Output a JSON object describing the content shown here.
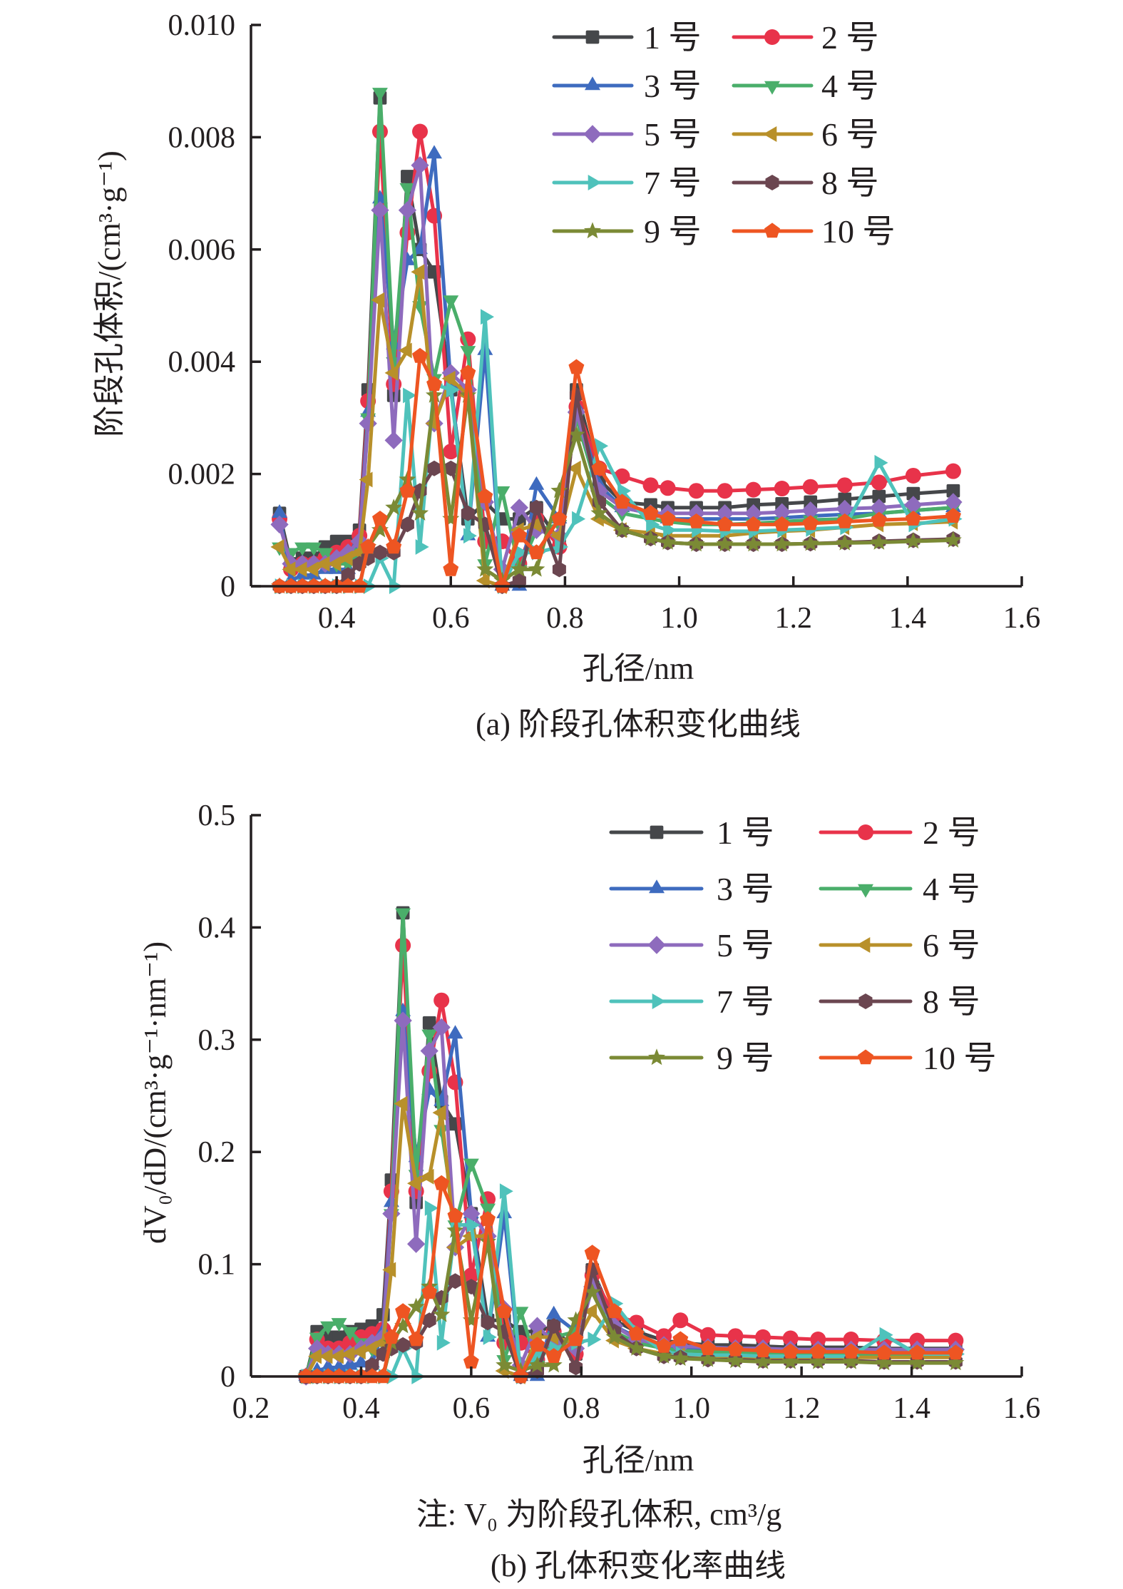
{
  "chart_data": [
    {
      "id": "a",
      "type": "line",
      "title": "",
      "caption": "(a) 阶段孔体积变化曲线",
      "xlabel": "孔径/nm",
      "ylabel": "阶段孔体积/(cm³·g⁻¹)",
      "xlim": [
        0.25,
        1.6
      ],
      "ylim": [
        0,
        0.01
      ],
      "xticks": [
        0.4,
        0.6,
        0.8,
        1.0,
        1.2,
        1.4,
        1.6
      ],
      "xtick_labels": [
        "0.4",
        "0.6",
        "0.8",
        "1.0",
        "1.2",
        "1.4",
        "1.6"
      ],
      "yticks": [
        0,
        0.002,
        0.004,
        0.006,
        0.008,
        0.01
      ],
      "ytick_labels": [
        "0",
        "0.002",
        "0.004",
        "0.006",
        "0.008",
        "0.010"
      ],
      "grid": false,
      "legend_position": "top-right",
      "x": [
        0.3,
        0.32,
        0.34,
        0.36,
        0.38,
        0.4,
        0.42,
        0.44,
        0.455,
        0.476,
        0.5,
        0.524,
        0.546,
        0.571,
        0.6,
        0.63,
        0.66,
        0.69,
        0.72,
        0.75,
        0.79,
        0.82,
        0.86,
        0.9,
        0.95,
        0.98,
        1.03,
        1.08,
        1.13,
        1.18,
        1.23,
        1.29,
        1.35,
        1.41,
        1.48
      ],
      "series": [
        {
          "name": "1 号",
          "color": "#45474a",
          "marker": "square",
          "values": [
            0.0013,
            0.0004,
            0.0005,
            0.0005,
            0.0007,
            0.0008,
            0.0008,
            0.001,
            0.0035,
            0.0087,
            0.0034,
            0.0073,
            0.006,
            0.0056,
            0.0035,
            0.0012,
            0.0015,
            0.0012,
            0.0012,
            0.0014,
            0.0008,
            0.0035,
            0.0019,
            0.0015,
            0.00145,
            0.0014,
            0.0014,
            0.0014,
            0.00145,
            0.00147,
            0.0015,
            0.00155,
            0.0016,
            0.00165,
            0.0017
          ]
        },
        {
          "name": "2 号",
          "color": "#e8334a",
          "marker": "circle",
          "values": [
            0.0012,
            0.0003,
            0.0004,
            0.0004,
            0.0005,
            0.0006,
            0.0007,
            0.0009,
            0.0033,
            0.0081,
            0.0036,
            0.0063,
            0.0081,
            0.0066,
            0.0024,
            0.0044,
            0.0008,
            0.0008,
            0.0004,
            0.0012,
            0.0007,
            0.0032,
            0.0021,
            0.00196,
            0.0018,
            0.00175,
            0.0017,
            0.0017,
            0.00172,
            0.00174,
            0.00177,
            0.0018,
            0.00185,
            0.00197,
            0.00205
          ]
        },
        {
          "name": "3 号",
          "color": "#3e6bbf",
          "marker": "triangle-up",
          "values": [
            0.0013,
            0.0001,
            0.0002,
            0.0002,
            0.0003,
            0.0003,
            0.0003,
            0.0008,
            0.0031,
            0.0069,
            0.0043,
            0.0058,
            0.006,
            0.0077,
            0.0036,
            0.0009,
            0.0042,
            0.0,
            0.0,
            0.0018,
            0.0012,
            0.0032,
            0.0018,
            0.0014,
            0.0013,
            0.0012,
            0.0012,
            0.0012,
            0.0012,
            0.00122,
            0.00125,
            0.00128,
            0.0013,
            0.00135,
            0.0014
          ]
        },
        {
          "name": "4 号",
          "color": "#4aae6a",
          "marker": "triangle-down",
          "values": [
            0.0007,
            0.0006,
            0.0007,
            0.0007,
            0.0006,
            0.0004,
            0.0004,
            0.0006,
            0.003,
            0.0088,
            0.004,
            0.0071,
            0.005,
            0.0037,
            0.0051,
            0.0042,
            0.0004,
            0.0017,
            0.0003,
            0.001,
            0.0011,
            0.003,
            0.0016,
            0.0013,
            0.0012,
            0.00115,
            0.0011,
            0.0011,
            0.00112,
            0.00115,
            0.00118,
            0.0012,
            0.0013,
            0.00135,
            0.0014
          ]
        },
        {
          "name": "5 号",
          "color": "#8e6bbd",
          "marker": "diamond",
          "values": [
            0.0011,
            0.0004,
            0.0004,
            0.0004,
            0.0004,
            0.0005,
            0.0006,
            0.0008,
            0.0029,
            0.0067,
            0.0026,
            0.0067,
            0.0075,
            0.0029,
            0.0038,
            0.0035,
            0.0015,
            0.0003,
            0.0014,
            0.001,
            0.0009,
            0.0031,
            0.0017,
            0.0014,
            0.0013,
            0.0013,
            0.0013,
            0.0013,
            0.0013,
            0.00132,
            0.00135,
            0.00138,
            0.0014,
            0.00145,
            0.0015
          ]
        },
        {
          "name": "6 号",
          "color": "#b8902a",
          "marker": "triangle-left",
          "values": [
            0.0007,
            0.0003,
            0.0003,
            0.0003,
            0.0004,
            0.0004,
            0.0005,
            0.0006,
            0.0019,
            0.0051,
            0.0038,
            0.0042,
            0.0056,
            0.0029,
            0.0037,
            0.0034,
            0.0001,
            0.0,
            0.001,
            0.0011,
            0.0009,
            0.0021,
            0.0012,
            0.001,
            0.00095,
            0.0009,
            0.0009,
            0.0009,
            0.00095,
            0.00098,
            0.001,
            0.00105,
            0.0011,
            0.00112,
            0.00115
          ]
        },
        {
          "name": "7 号",
          "color": "#4fc2bb",
          "marker": "triangle-right",
          "values": [
            0.0,
            0.0,
            0.0,
            0.0,
            0.0,
            0.0,
            0.0,
            0.0,
            0.0,
            0.0005,
            0.0,
            0.0034,
            0.0007,
            0.0036,
            0.0035,
            0.0009,
            0.0048,
            0.0,
            0.0006,
            0.0006,
            0.0007,
            0.0012,
            0.0025,
            0.0017,
            0.0011,
            0.001,
            0.001,
            0.00098,
            0.00098,
            0.001,
            0.00102,
            0.00105,
            0.0022,
            0.0011,
            0.0012
          ]
        },
        {
          "name": "8 号",
          "color": "#6b4650",
          "marker": "hexagon",
          "values": [
            0.0,
            0.0,
            0.0,
            0.0,
            0.0,
            0.0,
            0.0002,
            0.0004,
            0.0005,
            0.0006,
            0.0006,
            0.0011,
            0.0017,
            0.0021,
            0.0021,
            0.0013,
            0.0011,
            0.0,
            0.0001,
            0.0014,
            0.0003,
            0.0034,
            0.0015,
            0.001,
            0.00085,
            0.00078,
            0.00075,
            0.00075,
            0.00075,
            0.00075,
            0.00076,
            0.00078,
            0.0008,
            0.00082,
            0.00084
          ]
        },
        {
          "name": "9 号",
          "color": "#7b8a35",
          "marker": "star",
          "values": [
            0.0,
            0.0,
            0.0,
            0.0,
            0.0,
            0.0,
            0.0,
            0.0,
            0.0007,
            0.001,
            0.0014,
            0.0019,
            0.0013,
            0.0034,
            0.0012,
            0.0034,
            0.0003,
            0.0001,
            0.0003,
            0.0003,
            0.0017,
            0.0027,
            0.0013,
            0.001,
            0.00085,
            0.00078,
            0.00075,
            0.00075,
            0.00075,
            0.00075,
            0.00076,
            0.00077,
            0.00078,
            0.0008,
            0.00082
          ]
        },
        {
          "name": "10 号",
          "color": "#ee5522",
          "marker": "pentagon",
          "values": [
            0.0,
            0.0,
            0.0,
            0.0,
            0.0,
            0.0,
            0.0,
            0.0,
            0.0007,
            0.0012,
            0.0007,
            0.0017,
            0.0041,
            0.0036,
            0.0003,
            0.0038,
            0.0016,
            0.0,
            0.0009,
            0.0006,
            0.0012,
            0.0039,
            0.0021,
            0.0015,
            0.0013,
            0.0012,
            0.00115,
            0.0011,
            0.0011,
            0.0011,
            0.00112,
            0.00115,
            0.00118,
            0.0012,
            0.00125
          ]
        }
      ]
    },
    {
      "id": "b",
      "type": "line",
      "title": "",
      "caption": "(b) 孔体积变化率曲线",
      "note": "注: V₀ 为阶段孔体积, cm³/g",
      "xlabel": "孔径/nm",
      "ylabel": "dV₀/dD/(cm³·g⁻¹·nm⁻¹)",
      "xlim": [
        0.2,
        1.6
      ],
      "ylim": [
        0,
        0.5
      ],
      "xticks": [
        0.2,
        0.4,
        0.6,
        0.8,
        1.0,
        1.2,
        1.4,
        1.6
      ],
      "xtick_labels": [
        "0.2",
        "0.4",
        "0.6",
        "0.8",
        "1.0",
        "1.2",
        "1.4",
        "1.6"
      ],
      "yticks": [
        0,
        0.1,
        0.2,
        0.3,
        0.4,
        0.5
      ],
      "ytick_labels": [
        "0",
        "0.1",
        "0.2",
        "0.3",
        "0.4",
        "0.5"
      ],
      "grid": false,
      "legend_position": "top-right",
      "x": [
        0.3,
        0.32,
        0.34,
        0.36,
        0.38,
        0.4,
        0.42,
        0.44,
        0.455,
        0.476,
        0.5,
        0.524,
        0.546,
        0.571,
        0.6,
        0.63,
        0.66,
        0.69,
        0.72,
        0.75,
        0.79,
        0.82,
        0.86,
        0.9,
        0.95,
        0.98,
        1.03,
        1.08,
        1.13,
        1.18,
        1.23,
        1.29,
        1.35,
        1.41,
        1.48
      ],
      "series": [
        {
          "name": "1 号",
          "color": "#45474a",
          "marker": "square",
          "values": [
            0.0,
            0.04,
            0.035,
            0.035,
            0.04,
            0.042,
            0.045,
            0.055,
            0.175,
            0.413,
            0.155,
            0.315,
            0.245,
            0.225,
            0.145,
            0.05,
            0.05,
            0.04,
            0.04,
            0.045,
            0.02,
            0.095,
            0.05,
            0.04,
            0.032,
            0.03,
            0.028,
            0.028,
            0.027,
            0.026,
            0.026,
            0.026,
            0.025,
            0.025,
            0.025
          ]
        },
        {
          "name": "2 号",
          "color": "#e8334a",
          "marker": "circle",
          "values": [
            0.0,
            0.033,
            0.025,
            0.025,
            0.03,
            0.035,
            0.038,
            0.042,
            0.165,
            0.384,
            0.165,
            0.272,
            0.335,
            0.262,
            0.09,
            0.158,
            0.03,
            0.03,
            0.015,
            0.04,
            0.02,
            0.09,
            0.055,
            0.048,
            0.036,
            0.05,
            0.037,
            0.036,
            0.035,
            0.034,
            0.033,
            0.033,
            0.032,
            0.032,
            0.032
          ]
        },
        {
          "name": "3 号",
          "color": "#3e6bbf",
          "marker": "triangle-up",
          "values": [
            0.0,
            0.005,
            0.008,
            0.008,
            0.01,
            0.012,
            0.012,
            0.04,
            0.155,
            0.325,
            0.195,
            0.255,
            0.245,
            0.305,
            0.145,
            0.035,
            0.145,
            0.0,
            0.0,
            0.055,
            0.04,
            0.085,
            0.045,
            0.035,
            0.028,
            0.026,
            0.025,
            0.024,
            0.024,
            0.023,
            0.023,
            0.023,
            0.023,
            0.023,
            0.023
          ]
        },
        {
          "name": "4 号",
          "color": "#4aae6a",
          "marker": "triangle-down",
          "values": [
            0.0,
            0.035,
            0.045,
            0.048,
            0.04,
            0.03,
            0.025,
            0.03,
            0.145,
            0.413,
            0.18,
            0.305,
            0.22,
            0.135,
            0.19,
            0.15,
            0.015,
            0.058,
            0.01,
            0.035,
            0.04,
            0.08,
            0.04,
            0.03,
            0.025,
            0.023,
            0.022,
            0.021,
            0.021,
            0.021,
            0.02,
            0.02,
            0.02,
            0.02,
            0.02
          ]
        },
        {
          "name": "5 号",
          "color": "#8e6bbd",
          "marker": "diamond",
          "values": [
            0.0,
            0.025,
            0.02,
            0.02,
            0.02,
            0.025,
            0.03,
            0.035,
            0.145,
            0.317,
            0.118,
            0.29,
            0.311,
            0.115,
            0.145,
            0.125,
            0.06,
            0.01,
            0.045,
            0.03,
            0.025,
            0.08,
            0.045,
            0.033,
            0.028,
            0.027,
            0.026,
            0.025,
            0.025,
            0.024,
            0.024,
            0.024,
            0.024,
            0.024,
            0.024
          ]
        },
        {
          "name": "6 号",
          "color": "#b8902a",
          "marker": "triangle-left",
          "values": [
            0.0,
            0.018,
            0.018,
            0.018,
            0.02,
            0.022,
            0.025,
            0.03,
            0.095,
            0.243,
            0.172,
            0.178,
            0.235,
            0.115,
            0.125,
            0.125,
            0.005,
            0.0,
            0.035,
            0.035,
            0.03,
            0.058,
            0.032,
            0.025,
            0.02,
            0.019,
            0.018,
            0.017,
            0.017,
            0.017,
            0.017,
            0.017,
            0.017,
            0.017,
            0.017
          ]
        },
        {
          "name": "7 号",
          "color": "#4fc2bb",
          "marker": "triangle-right",
          "values": [
            0.0,
            0.0,
            0.0,
            0.0,
            0.0,
            0.0,
            0.0,
            0.0,
            0.0,
            0.025,
            0.0,
            0.15,
            0.03,
            0.135,
            0.135,
            0.035,
            0.165,
            0.0,
            0.02,
            0.025,
            0.03,
            0.033,
            0.065,
            0.04,
            0.022,
            0.02,
            0.019,
            0.019,
            0.018,
            0.018,
            0.018,
            0.018,
            0.037,
            0.02,
            0.02
          ]
        },
        {
          "name": "8 号",
          "color": "#6b4650",
          "marker": "hexagon",
          "values": [
            0.0,
            0.0,
            0.0,
            0.0,
            0.0,
            0.0,
            0.01,
            0.02,
            0.025,
            0.028,
            0.03,
            0.05,
            0.07,
            0.085,
            0.08,
            0.048,
            0.04,
            0.0,
            0.005,
            0.045,
            0.008,
            0.095,
            0.04,
            0.025,
            0.018,
            0.017,
            0.015,
            0.015,
            0.014,
            0.014,
            0.014,
            0.014,
            0.013,
            0.013,
            0.013
          ]
        },
        {
          "name": "9 号",
          "color": "#7b8a35",
          "marker": "star",
          "values": [
            0.0,
            0.0,
            0.0,
            0.0,
            0.0,
            0.0,
            0.0,
            0.0,
            0.03,
            0.045,
            0.062,
            0.08,
            0.055,
            0.13,
            0.05,
            0.12,
            0.01,
            0.005,
            0.01,
            0.01,
            0.05,
            0.075,
            0.035,
            0.025,
            0.018,
            0.016,
            0.015,
            0.014,
            0.013,
            0.013,
            0.013,
            0.013,
            0.012,
            0.012,
            0.012
          ]
        },
        {
          "name": "10 号",
          "color": "#ee5522",
          "marker": "pentagon",
          "values": [
            0.0,
            0.0,
            0.0,
            0.0,
            0.0,
            0.0,
            0.0,
            0.0,
            0.035,
            0.058,
            0.033,
            0.075,
            0.172,
            0.143,
            0.013,
            0.14,
            0.058,
            0.0,
            0.028,
            0.018,
            0.033,
            0.11,
            0.058,
            0.038,
            0.027,
            0.033,
            0.025,
            0.024,
            0.023,
            0.022,
            0.022,
            0.022,
            0.021,
            0.021,
            0.021
          ]
        }
      ]
    }
  ]
}
